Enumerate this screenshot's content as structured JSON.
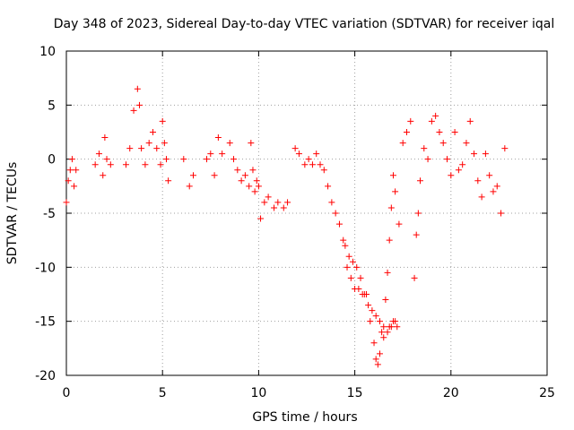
{
  "chart_data": {
    "type": "scatter",
    "title": "Day 348 of 2023, Sidereal Day-to-day VTEC variation (SDTVAR) for receiver iqal",
    "xlabel": "GPS time / hours",
    "ylabel": "SDTVAR / TECUs",
    "xlim": [
      0,
      25
    ],
    "ylim": [
      -20,
      10
    ],
    "xticks": [
      "0",
      "5",
      "10",
      "15",
      "20",
      "25"
    ],
    "yticks": [
      "10",
      "5",
      "0",
      "-5",
      "-10",
      "-15",
      "-20"
    ],
    "grid": true,
    "marker": "+",
    "series": [
      {
        "name": "SDTVAR",
        "color": "#ff0000",
        "x": [
          0.0,
          0.1,
          0.2,
          0.3,
          0.4,
          0.5,
          1.5,
          1.7,
          1.9,
          2.0,
          2.1,
          2.3,
          3.1,
          3.3,
          3.5,
          3.7,
          3.8,
          3.9,
          4.1,
          4.3,
          4.5,
          4.7,
          4.9,
          5.0,
          5.1,
          5.2,
          5.3,
          6.1,
          6.4,
          6.6,
          7.3,
          7.5,
          7.7,
          7.9,
          8.1,
          8.5,
          8.7,
          8.9,
          9.1,
          9.3,
          9.5,
          9.6,
          9.7,
          9.8,
          9.9,
          10.0,
          10.1,
          10.3,
          10.5,
          10.8,
          11.0,
          11.3,
          11.5,
          11.9,
          12.1,
          12.4,
          12.6,
          12.8,
          13.0,
          13.2,
          13.4,
          13.6,
          13.8,
          14.0,
          14.2,
          14.4,
          14.6,
          14.8,
          15.0,
          15.2,
          15.4,
          15.6,
          15.8,
          16.0,
          16.1,
          16.2,
          16.3,
          16.4,
          16.5,
          16.6,
          16.7,
          16.8,
          16.9,
          17.0,
          17.1,
          17.3,
          17.5,
          17.7,
          17.9,
          18.1,
          18.2,
          18.3,
          18.4,
          18.6,
          18.8,
          19.0,
          19.2,
          19.4,
          19.6,
          19.8,
          20.0,
          20.2,
          20.4,
          20.6,
          20.8,
          21.0,
          21.2,
          21.4,
          21.6,
          21.8,
          22.0,
          22.2,
          22.4,
          22.6,
          22.8,
          14.5,
          14.7,
          14.9,
          15.1,
          15.3,
          15.5,
          15.7,
          15.9,
          16.1,
          16.3,
          16.5,
          16.7,
          16.8,
          16.9,
          17.0,
          17.1,
          17.2
        ],
        "y": [
          -4.0,
          -2.0,
          -1.0,
          0.0,
          -2.5,
          -1.0,
          -0.5,
          0.5,
          -1.5,
          2.0,
          0.0,
          -0.5,
          -0.5,
          1.0,
          4.5,
          6.5,
          5.0,
          1.0,
          -0.5,
          1.5,
          2.5,
          1.0,
          -0.5,
          3.5,
          1.5,
          0.0,
          -2.0,
          0.0,
          -2.5,
          -1.5,
          0.0,
          0.5,
          -1.5,
          2.0,
          0.5,
          1.5,
          0.0,
          -1.0,
          -2.0,
          -1.5,
          -2.5,
          1.5,
          -1.0,
          -3.0,
          -2.0,
          -2.5,
          -5.5,
          -4.0,
          -3.5,
          -4.5,
          -4.0,
          -4.5,
          -4.0,
          1.0,
          0.5,
          -0.5,
          0.0,
          -0.5,
          0.5,
          -0.5,
          -1.0,
          -2.5,
          -4.0,
          -5.0,
          -6.0,
          -7.5,
          -10.0,
          -11.0,
          -12.0,
          -12.0,
          -12.5,
          -12.5,
          -15.0,
          -17.0,
          -18.5,
          -19.0,
          -18.0,
          -16.0,
          -15.5,
          -13.0,
          -10.5,
          -7.5,
          -4.5,
          -1.5,
          -3.0,
          -6.0,
          1.5,
          2.5,
          3.5,
          -11.0,
          -7.0,
          -5.0,
          -2.0,
          1.0,
          0.0,
          3.5,
          4.0,
          2.5,
          1.5,
          0.0,
          -1.5,
          2.5,
          -1.0,
          -0.5,
          1.5,
          3.5,
          0.5,
          -2.0,
          -3.5,
          0.5,
          -1.5,
          -3.0,
          -2.5,
          -5.0,
          1.0,
          -8.0,
          -9.0,
          -9.5,
          -10.0,
          -11.0,
          -12.5,
          -13.5,
          -14.0,
          -14.5,
          -15.0,
          -16.5,
          -16.0,
          -15.5,
          -15.5,
          -15.0,
          -15.0,
          -15.5
        ]
      }
    ]
  }
}
